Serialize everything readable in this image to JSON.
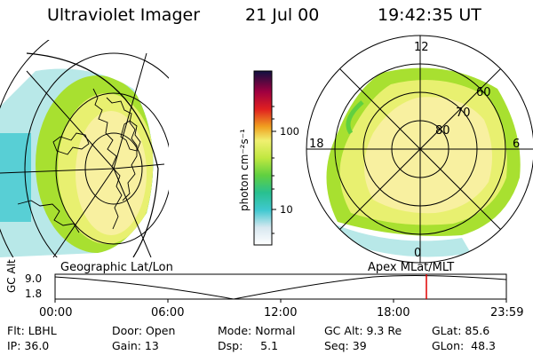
{
  "header": {
    "title": "Ultraviolet Imager",
    "date": "21 Jul 00",
    "time": "19:42:35 UT"
  },
  "maps": {
    "left_label": "Geographic Lat/Lon",
    "right_label": "Apex MLat/MLT",
    "polar_labels": {
      "top": "12",
      "right": "6",
      "bottom": "0",
      "left": "18"
    },
    "lat_labels": [
      "60",
      "70",
      "80"
    ]
  },
  "colorbar": {
    "title": "photon cm⁻²s⁻¹",
    "ticks": [
      "100",
      "10"
    ],
    "colors": [
      "#ffffff",
      "#e0eef4",
      "#a8dce8",
      "#40c8d0",
      "#28c090",
      "#60d040",
      "#a8e030",
      "#e8f070",
      "#f8f0a0",
      "#f0a020",
      "#e02020",
      "#a00040",
      "#501040",
      "#101040"
    ]
  },
  "timeseries": {
    "ylabel": "GC Alt",
    "yticks": [
      "9.0",
      "1.8"
    ],
    "xticks": [
      "00:00",
      "06:00",
      "12:00",
      "18:00",
      "23:59"
    ],
    "marker_color": "#e00000"
  },
  "info": {
    "row1": [
      "Flt: LBHL",
      "Door: Open",
      "Mode: Normal",
      "GC Alt: 9.3 Re",
      "GLat: 85.6"
    ],
    "row2": [
      "IP: 36.0",
      "Gain: 13",
      "Dsp:     5.1",
      "Seq: 39",
      "GLon:  48.3"
    ]
  }
}
